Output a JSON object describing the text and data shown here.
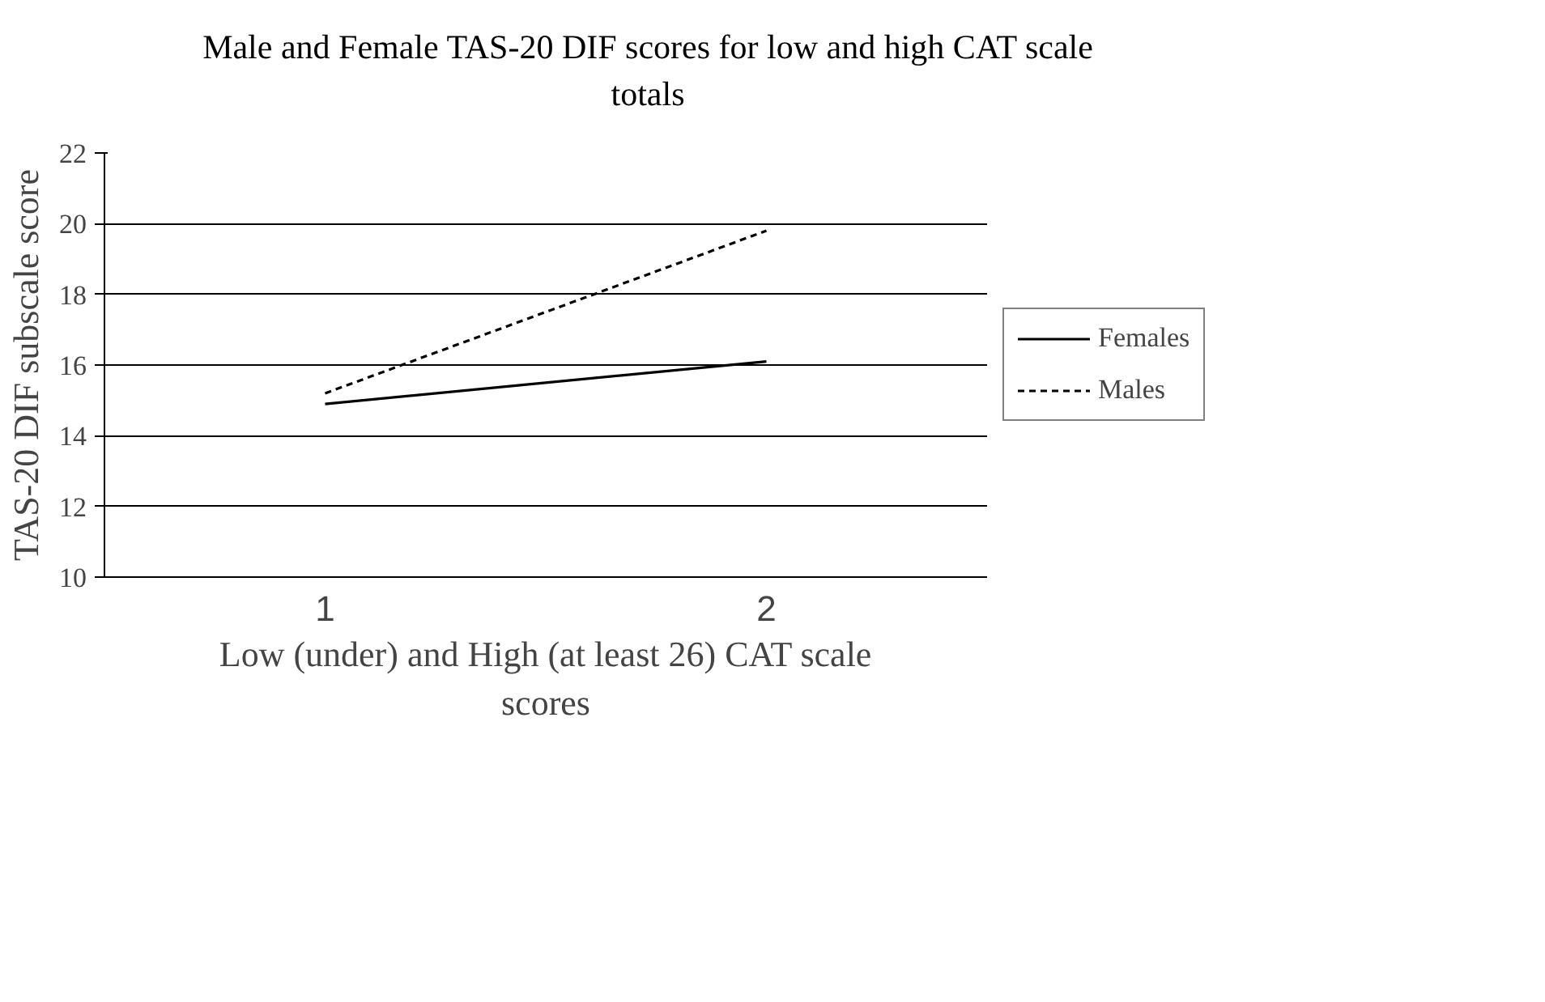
{
  "chart_data": {
    "type": "line",
    "title": "Male and Female TAS-20 DIF scores for low and high CAT scale totals",
    "xlabel": "Low (under) and High (at least 26) CAT scale scores",
    "ylabel": "TAS-20 DIF subscale score",
    "categories": [
      "1",
      "2"
    ],
    "series": [
      {
        "name": "Females",
        "color": "#000000",
        "values": [
          14.9,
          16.1
        ],
        "line_style": "solid"
      },
      {
        "name": "Males",
        "color": "#000000",
        "values": [
          15.2,
          19.8
        ],
        "line_style": "dotted"
      }
    ],
    "ylim": [
      10,
      22
    ],
    "yticks": [
      10,
      12,
      14,
      16,
      18,
      20,
      22
    ],
    "grid": "y",
    "legend": "right",
    "marker": "none"
  }
}
